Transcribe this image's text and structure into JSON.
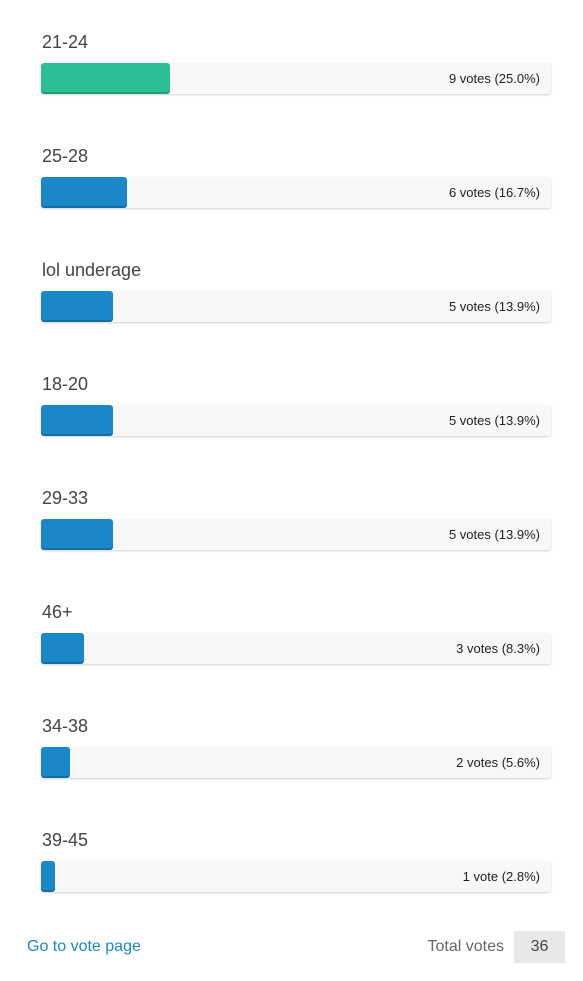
{
  "poll": {
    "answers": [
      {
        "label": "21-24",
        "votes_text": "9 votes (25.0%)",
        "percent": 25.0,
        "leader": true
      },
      {
        "label": "25-28",
        "votes_text": "6 votes (16.7%)",
        "percent": 16.7,
        "leader": false
      },
      {
        "label": "lol underage",
        "votes_text": "5 votes (13.9%)",
        "percent": 13.9,
        "leader": false
      },
      {
        "label": "18-20",
        "votes_text": "5 votes (13.9%)",
        "percent": 13.9,
        "leader": false
      },
      {
        "label": "29-33",
        "votes_text": "5 votes (13.9%)",
        "percent": 13.9,
        "leader": false
      },
      {
        "label": "46+",
        "votes_text": "3 votes (8.3%)",
        "percent": 8.3,
        "leader": false
      },
      {
        "label": "34-38",
        "votes_text": "2 votes (5.6%)",
        "percent": 5.6,
        "leader": false
      },
      {
        "label": "39-45",
        "votes_text": "1 vote (2.8%)",
        "percent": 2.8,
        "leader": false
      }
    ],
    "colors": {
      "leader_bar": "#2bbf95",
      "bar": "#1a87c9",
      "link": "#1a87c9"
    }
  },
  "footer": {
    "vote_link": "Go to vote page",
    "total_label": "Total votes",
    "total_value": "36"
  }
}
